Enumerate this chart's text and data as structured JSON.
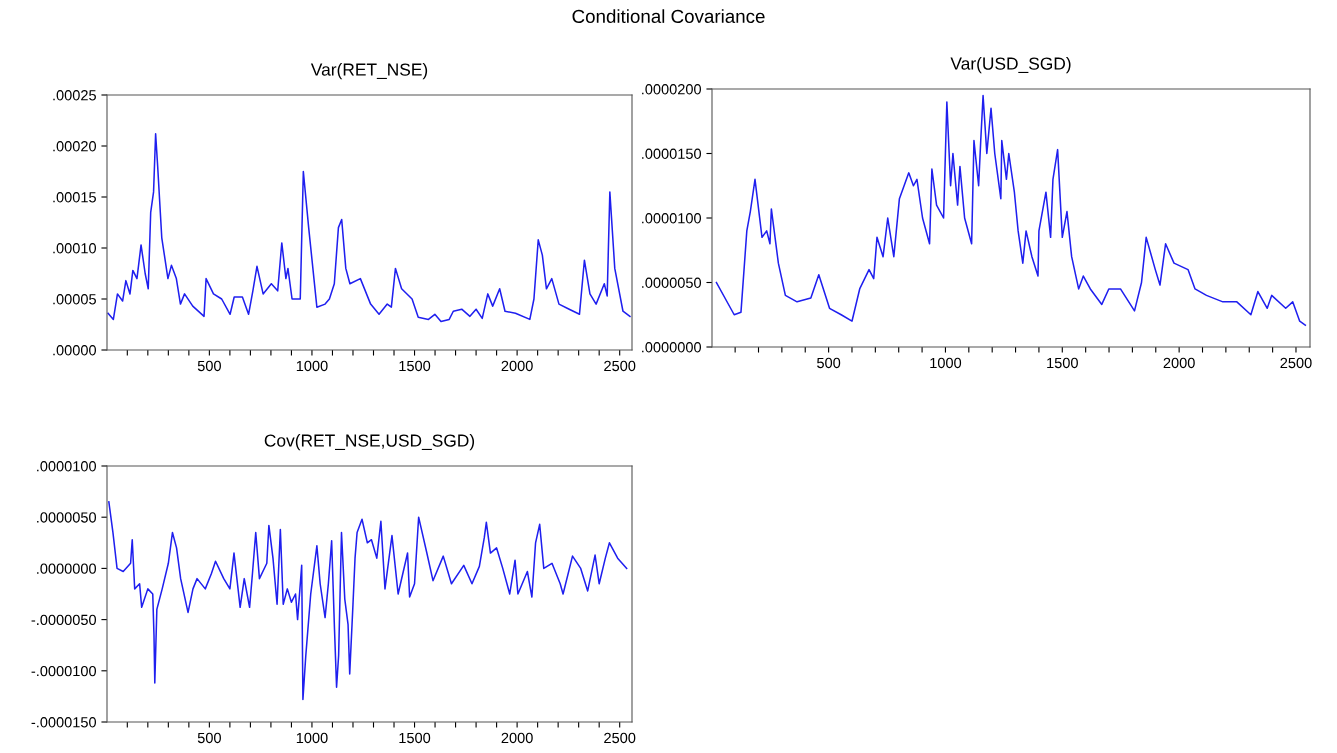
{
  "chart_data": [
    {
      "type": "line",
      "title": "Var(RET_NSE)",
      "annotations": [
        "Conditional Covariance"
      ],
      "xlim": [
        1,
        2560
      ],
      "xticks": [
        {
          "value": 100,
          "label": null
        },
        {
          "value": 200,
          "label": null
        },
        {
          "value": 300,
          "label": null
        },
        {
          "value": 400,
          "label": null
        },
        500,
        {
          "value": 600,
          "label": null
        },
        {
          "value": 700,
          "label": null
        },
        {
          "value": 800,
          "label": null
        },
        {
          "value": 900,
          "label": null
        },
        1000,
        {
          "value": 1100,
          "label": null
        },
        {
          "value": 1200,
          "label": null
        },
        {
          "value": 1300,
          "label": null
        },
        {
          "value": 1400,
          "label": null
        },
        1500,
        {
          "value": 1600,
          "label": null
        },
        {
          "value": 1700,
          "label": null
        },
        {
          "value": 1800,
          "label": null
        },
        {
          "value": 1900,
          "label": null
        },
        2000,
        {
          "value": 2100,
          "label": null
        },
        {
          "value": 2200,
          "label": null
        },
        {
          "value": 2300,
          "label": null
        },
        {
          "value": 2400,
          "label": null
        },
        2500
      ],
      "ylim": [
        0,
        0.00025
      ],
      "yticks": [
        {
          "value": 0,
          "label": ".00000"
        },
        {
          "value": 5e-05,
          "label": ".00005"
        },
        {
          "value": 0.0001,
          "label": ".00010"
        },
        {
          "value": 0.00015,
          "label": ".00015"
        },
        {
          "value": 0.0002,
          "label": ".00020"
        },
        {
          "value": 0.00025,
          "label": ".00025"
        }
      ],
      "grid": false,
      "line_style": "solid",
      "marker": "none",
      "series": [
        {
          "color": "#1f1fef",
          "x": [
            6,
            32,
            52,
            77,
            93,
            113,
            127,
            147,
            167,
            187,
            202,
            214,
            228,
            238,
            248,
            268,
            298,
            315,
            339,
            359,
            379,
            419,
            474,
            484,
            520,
            560,
            601,
            621,
            661,
            691,
            712,
            732,
            762,
            802,
            833,
            853,
            873,
            883,
            903,
            943,
            958,
            984,
            1024,
            1064,
            1085,
            1109,
            1129,
            1145,
            1165,
            1185,
            1236,
            1286,
            1327,
            1367,
            1387,
            1407,
            1437,
            1488,
            1518,
            1568,
            1599,
            1629,
            1669,
            1689,
            1730,
            1770,
            1800,
            1830,
            1857,
            1881,
            1915,
            1941,
            1992,
            2062,
            2082,
            2103,
            2123,
            2143,
            2169,
            2204,
            2254,
            2304,
            2328,
            2355,
            2385,
            2425,
            2439,
            2452,
            2476,
            2516,
            2550
          ],
          "values": [
            3.6e-05,
            3e-05,
            5.5e-05,
            4.8e-05,
            6.8e-05,
            5.5e-05,
            7.8e-05,
            7e-05,
            0.000103,
            7.5e-05,
            6e-05,
            0.000135,
            0.000155,
            0.000212,
            0.00018,
            0.00011,
            7e-05,
            8.3e-05,
            7e-05,
            4.5e-05,
            5.5e-05,
            4.3e-05,
            3.3e-05,
            7e-05,
            5.5e-05,
            5e-05,
            3.5e-05,
            5.2e-05,
            5.2e-05,
            3.5e-05,
            5.8e-05,
            8.2e-05,
            5.5e-05,
            6.5e-05,
            5.8e-05,
            0.000105,
            7e-05,
            8e-05,
            5e-05,
            5e-05,
            0.000175,
            0.00012,
            4.2e-05,
            4.5e-05,
            5e-05,
            6.5e-05,
            0.00012,
            0.000128,
            8e-05,
            6.5e-05,
            7e-05,
            4.5e-05,
            3.5e-05,
            4.5e-05,
            4.2e-05,
            8e-05,
            6e-05,
            5e-05,
            3.2e-05,
            3e-05,
            3.5e-05,
            2.8e-05,
            3e-05,
            3.8e-05,
            4e-05,
            3.3e-05,
            4e-05,
            3.1e-05,
            5.5e-05,
            4.3e-05,
            6e-05,
            3.8e-05,
            3.6e-05,
            3e-05,
            5e-05,
            0.000108,
            9.3e-05,
            6e-05,
            7e-05,
            4.5e-05,
            4e-05,
            3.5e-05,
            8.8e-05,
            5.5e-05,
            4.5e-05,
            6.5e-05,
            5.3e-05,
            0.000155,
            8e-05,
            3.8e-05,
            3.3e-05
          ]
        }
      ]
    },
    {
      "type": "line",
      "title": "Var(USD_SGD)",
      "xlim": [
        1,
        2560
      ],
      "xticks": [
        {
          "value": 100,
          "label": null
        },
        {
          "value": 200,
          "label": null
        },
        {
          "value": 300,
          "label": null
        },
        {
          "value": 400,
          "label": null
        },
        500,
        {
          "value": 600,
          "label": null
        },
        {
          "value": 700,
          "label": null
        },
        {
          "value": 800,
          "label": null
        },
        {
          "value": 900,
          "label": null
        },
        1000,
        {
          "value": 1100,
          "label": null
        },
        {
          "value": 1200,
          "label": null
        },
        {
          "value": 1300,
          "label": null
        },
        {
          "value": 1400,
          "label": null
        },
        1500,
        {
          "value": 1600,
          "label": null
        },
        {
          "value": 1700,
          "label": null
        },
        {
          "value": 1800,
          "label": null
        },
        {
          "value": 1900,
          "label": null
        },
        2000,
        {
          "value": 2100,
          "label": null
        },
        {
          "value": 2200,
          "label": null
        },
        {
          "value": 2300,
          "label": null
        },
        {
          "value": 2400,
          "label": null
        },
        2500
      ],
      "ylim": [
        0,
        2e-05
      ],
      "yticks": [
        {
          "value": 0,
          "label": ".0000000"
        },
        {
          "value": 5e-06,
          "label": ".0000050"
        },
        {
          "value": 1e-05,
          "label": ".0000100"
        },
        {
          "value": 1.5e-05,
          "label": ".0000150"
        },
        {
          "value": 2e-05,
          "label": ".0000200"
        }
      ],
      "grid": false,
      "line_style": "solid",
      "marker": "none",
      "series": [
        {
          "color": "#1f1fef",
          "x": [
            20,
            96,
            125,
            150,
            165,
            185,
            215,
            235,
            249,
            255,
            285,
            315,
            365,
            424,
            458,
            504,
            554,
            600,
            633,
            673,
            693,
            707,
            733,
            753,
            779,
            803,
            843,
            863,
            878,
            902,
            932,
            942,
            962,
            992,
            1006,
            1022,
            1032,
            1052,
            1062,
            1082,
            1112,
            1122,
            1142,
            1151,
            1161,
            1177,
            1195,
            1211,
            1237,
            1241,
            1261,
            1271,
            1295,
            1311,
            1331,
            1345,
            1370,
            1396,
            1400,
            1430,
            1450,
            1460,
            1480,
            1500,
            1520,
            1540,
            1570,
            1590,
            1620,
            1669,
            1699,
            1749,
            1809,
            1839,
            1859,
            1898,
            1918,
            1942,
            1978,
            2038,
            2068,
            2117,
            2187,
            2247,
            2307,
            2337,
            2377,
            2396,
            2456,
            2486,
            2516,
            2540
          ],
          "values": [
            5e-06,
            2.5e-06,
            2.7e-06,
            9e-06,
            1.05e-05,
            1.3e-05,
            8.5e-06,
            9e-06,
            8e-06,
            1.07e-05,
            6.5e-06,
            4e-06,
            3.5e-06,
            3.8e-06,
            5.6e-06,
            3e-06,
            2.5e-06,
            2e-06,
            4.5e-06,
            6e-06,
            5.3e-06,
            8.5e-06,
            7e-06,
            1e-05,
            7e-06,
            1.15e-05,
            1.35e-05,
            1.25e-05,
            1.3e-05,
            1e-05,
            8e-06,
            1.38e-05,
            1.1e-05,
            1e-05,
            1.9e-05,
            1.25e-05,
            1.5e-05,
            1.1e-05,
            1.4e-05,
            1e-05,
            8e-06,
            1.6e-05,
            1.25e-05,
            1.6e-05,
            1.95e-05,
            1.5e-05,
            1.85e-05,
            1.5e-05,
            1.15e-05,
            1.6e-05,
            1.3e-05,
            1.5e-05,
            1.2e-05,
            9e-06,
            6.5e-06,
            9e-06,
            7e-06,
            5.5e-06,
            9e-06,
            1.2e-05,
            8.5e-06,
            1.3e-05,
            1.53e-05,
            8.5e-06,
            1.05e-05,
            7e-06,
            4.5e-06,
            5.5e-06,
            4.5e-06,
            3.3e-06,
            4.5e-06,
            4.5e-06,
            2.8e-06,
            5e-06,
            8.5e-06,
            6e-06,
            4.8e-06,
            8e-06,
            6.5e-06,
            6e-06,
            4.5e-06,
            4e-06,
            3.5e-06,
            3.5e-06,
            2.5e-06,
            4.3e-06,
            3e-06,
            4e-06,
            3e-06,
            3.5e-06,
            2e-06,
            1.7e-06
          ]
        }
      ]
    },
    {
      "type": "line",
      "title": "Cov(RET_NSE,USD_SGD)",
      "xlim": [
        1,
        2560
      ],
      "xticks": [
        {
          "value": 100,
          "label": null
        },
        {
          "value": 200,
          "label": null
        },
        {
          "value": 300,
          "label": null
        },
        {
          "value": 400,
          "label": null
        },
        500,
        {
          "value": 600,
          "label": null
        },
        {
          "value": 700,
          "label": null
        },
        {
          "value": 800,
          "label": null
        },
        {
          "value": 900,
          "label": null
        },
        1000,
        {
          "value": 1100,
          "label": null
        },
        {
          "value": 1200,
          "label": null
        },
        {
          "value": 1300,
          "label": null
        },
        {
          "value": 1400,
          "label": null
        },
        1500,
        {
          "value": 1600,
          "label": null
        },
        {
          "value": 1700,
          "label": null
        },
        {
          "value": 1800,
          "label": null
        },
        {
          "value": 1900,
          "label": null
        },
        2000,
        {
          "value": 2100,
          "label": null
        },
        {
          "value": 2200,
          "label": null
        },
        {
          "value": 2300,
          "label": null
        },
        {
          "value": 2400,
          "label": null
        },
        2500
      ],
      "ylim": [
        -1.5e-05,
        1e-05
      ],
      "yticks": [
        {
          "value": -1.5e-05,
          "label": "-.0000150"
        },
        {
          "value": -1e-05,
          "label": "-.0000100"
        },
        {
          "value": -5e-06,
          "label": "-.0000050"
        },
        {
          "value": 0,
          "label": ".0000000"
        },
        {
          "value": 5e-06,
          "label": ".0000050"
        },
        {
          "value": 1e-05,
          "label": ".0000100"
        }
      ],
      "grid": false,
      "line_style": "solid",
      "marker": "none",
      "series": [
        {
          "color": "#1f1fef",
          "x": [
            10,
            30,
            50,
            80,
            116,
            124,
            136,
            160,
            170,
            200,
            224,
            230,
            234,
            244,
            270,
            300,
            320,
            340,
            360,
            396,
            420,
            440,
            480,
            510,
            530,
            570,
            600,
            620,
            650,
            670,
            696,
            710,
            726,
            744,
            780,
            790,
            810,
            830,
            846,
            860,
            880,
            900,
            920,
            930,
            950,
            956,
            970,
            994,
            1024,
            1040,
            1064,
            1080,
            1096,
            1110,
            1120,
            1130,
            1144,
            1160,
            1176,
            1184,
            1200,
            1210,
            1220,
            1244,
            1270,
            1290,
            1316,
            1336,
            1356,
            1390,
            1420,
            1466,
            1476,
            1500,
            1520,
            1560,
            1590,
            1640,
            1680,
            1740,
            1780,
            1816,
            1840,
            1850,
            1870,
            1900,
            1930,
            1964,
            1990,
            2004,
            2050,
            2072,
            2090,
            2110,
            2130,
            2170,
            2210,
            2224,
            2270,
            2310,
            2344,
            2380,
            2400,
            2430,
            2450,
            2490,
            2534
          ],
          "values": [
            6.5e-06,
            3.5e-06,
            0.0,
            -3e-07,
            5e-07,
            2.8e-06,
            -2e-06,
            -1.5e-06,
            -3.8e-06,
            -2e-06,
            -2.5e-06,
            -6.5e-06,
            -1.12e-05,
            -4e-06,
            -2e-06,
            5e-07,
            3.5e-06,
            2e-06,
            -1e-06,
            -4.3e-06,
            -2e-06,
            -1e-06,
            -2e-06,
            -5e-07,
            7e-07,
            -1e-06,
            -2e-06,
            1.5e-06,
            -3.8e-06,
            -1e-06,
            -3.8e-06,
            -5e-07,
            3.5e-06,
            -1e-06,
            5e-07,
            4.2e-06,
            1e-06,
            -3.5e-06,
            3.8e-06,
            -3.5e-06,
            -2e-06,
            -3.3e-06,
            -2.5e-06,
            -5e-06,
            3e-07,
            -1.28e-05,
            -8.5e-06,
            -2.5e-06,
            2.2e-06,
            -1.5e-06,
            -4.8e-06,
            -1.5e-06,
            2.7e-06,
            -6e-06,
            -1.16e-05,
            -8.5e-06,
            3.5e-06,
            -3e-06,
            -5.5e-06,
            -1.03e-05,
            -3.5e-06,
            1e-06,
            3.5e-06,
            4.8e-06,
            2.5e-06,
            2.8e-06,
            1e-06,
            4.6e-06,
            -2e-06,
            3.2e-06,
            -2.5e-06,
            1.5e-06,
            -2.8e-06,
            -1.5e-06,
            5e-06,
            1.5e-06,
            -1.2e-06,
            1.2e-06,
            -1.5e-06,
            3e-07,
            -1.5e-06,
            2e-07,
            3e-06,
            4.5e-06,
            1.5e-06,
            2e-06,
            0.0,
            -2.5e-06,
            8e-07,
            -2.5e-06,
            -3e-07,
            -2.8e-06,
            2.5e-06,
            4.3e-06,
            0.0,
            5e-07,
            -1.5e-06,
            -2.5e-06,
            1.2e-06,
            0.0,
            -2.2e-06,
            1.3e-06,
            -1.5e-06,
            1e-06,
            2.5e-06,
            1e-06,
            0.0
          ]
        }
      ]
    }
  ]
}
